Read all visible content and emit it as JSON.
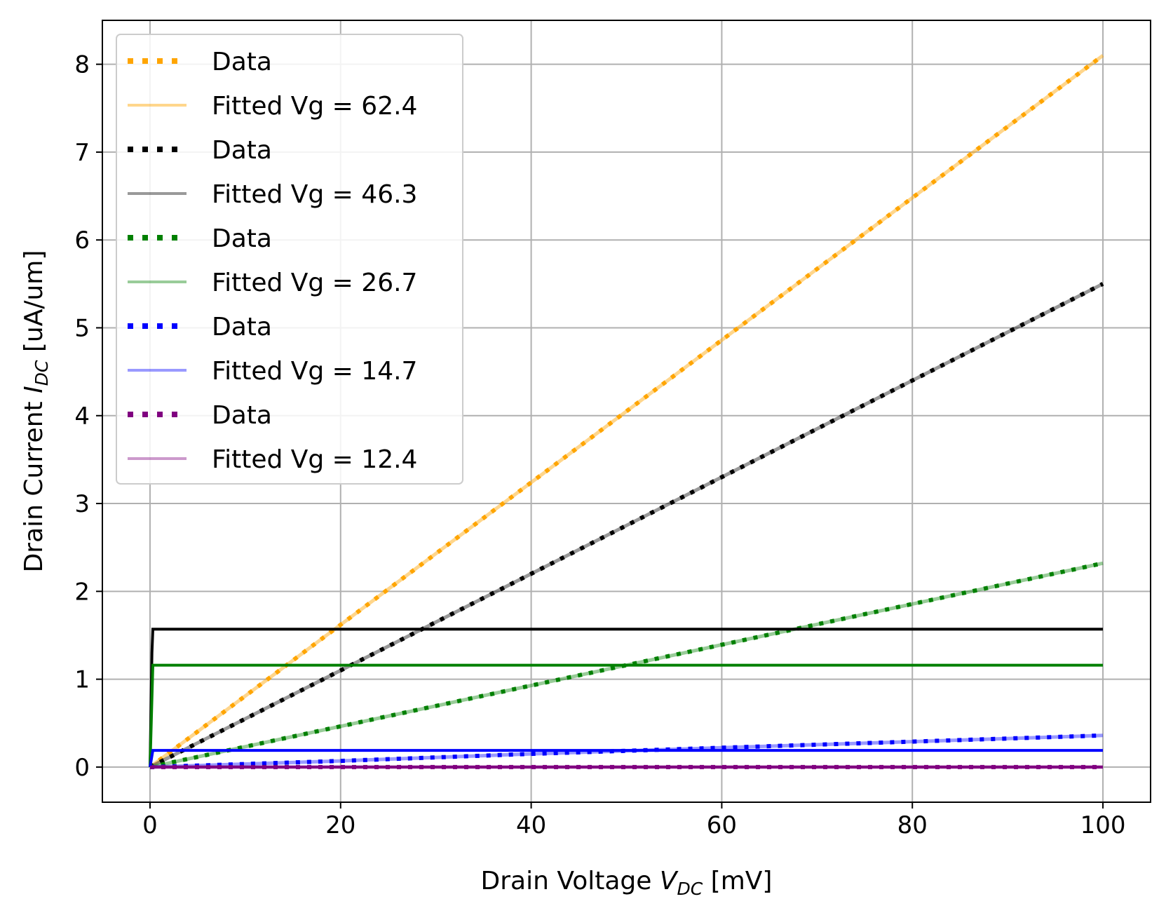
{
  "chart_data": {
    "type": "line",
    "xlabel": {
      "main": "Drain Voltage ",
      "var": "V",
      "sub": "DC",
      "unit": " [mV]"
    },
    "ylabel": {
      "main": "Drain Current ",
      "var": "I",
      "sub": "DC",
      "unit": " [uA/um]"
    },
    "xlim": [
      -5,
      105
    ],
    "ylim": [
      -0.4,
      8.5
    ],
    "xticks": [
      0,
      20,
      40,
      60,
      80,
      100
    ],
    "yticks": [
      0,
      1,
      2,
      3,
      4,
      5,
      6,
      7,
      8
    ],
    "grid": true,
    "legend_position": "top-left",
    "x_range": [
      0,
      100
    ],
    "series": [
      {
        "legend": "Data",
        "color": "#ffa500",
        "style": "dotted",
        "alpha": 1.0,
        "curve": [
          [
            0,
            0.0
          ],
          [
            100,
            8.1
          ]
        ]
      },
      {
        "legend": "Fitted Vg = 62.4",
        "color": "#ffa500",
        "style": "solid",
        "alpha": 0.45,
        "curve": [
          [
            0,
            0.0
          ],
          [
            100,
            8.1
          ]
        ]
      },
      {
        "legend": "Data",
        "color": "#000000",
        "style": "dotted",
        "alpha": 1.0,
        "curve": [
          [
            0,
            0.0
          ],
          [
            100,
            5.5
          ]
        ]
      },
      {
        "legend": "Fitted Vg = 46.3",
        "color": "#000000",
        "style": "solid",
        "alpha": 0.4,
        "curve": [
          [
            0,
            0.0
          ],
          [
            100,
            5.5
          ]
        ]
      },
      {
        "legend": "Data",
        "color": "#008000",
        "style": "dotted",
        "alpha": 1.0,
        "curve": [
          [
            0,
            0.0
          ],
          [
            100,
            2.32
          ]
        ]
      },
      {
        "legend": "Fitted Vg = 26.7",
        "color": "#008000",
        "style": "solid",
        "alpha": 0.4,
        "curve": [
          [
            0,
            0.0
          ],
          [
            100,
            2.32
          ]
        ]
      },
      {
        "legend": "Data",
        "color": "#0000ff",
        "style": "dotted",
        "alpha": 1.0,
        "curve": [
          [
            0,
            0.0
          ],
          [
            20,
            0.07
          ],
          [
            40,
            0.15
          ],
          [
            60,
            0.22
          ],
          [
            80,
            0.29
          ],
          [
            100,
            0.36
          ]
        ]
      },
      {
        "legend": "Fitted Vg = 14.7",
        "color": "#0000ff",
        "style": "solid",
        "alpha": 0.4,
        "curve": [
          [
            0,
            0.0
          ],
          [
            20,
            0.07
          ],
          [
            40,
            0.15
          ],
          [
            60,
            0.22
          ],
          [
            80,
            0.29
          ],
          [
            100,
            0.36
          ]
        ]
      },
      {
        "legend": "Data",
        "color": "#800080",
        "style": "dotted",
        "alpha": 1.0,
        "curve": [
          [
            0,
            0.0
          ],
          [
            100,
            0.0
          ]
        ]
      },
      {
        "legend": "Fitted Vg = 12.4",
        "color": "#800080",
        "style": "solid",
        "alpha": 0.4,
        "curve": [
          [
            0,
            0.0
          ],
          [
            100,
            0.0
          ]
        ]
      }
    ],
    "unlabeled_lines": [
      {
        "color": "#000000",
        "curve": [
          [
            0,
            0.0
          ],
          [
            0.2,
            1.3
          ],
          [
            0.3,
            1.57
          ],
          [
            100,
            1.57
          ]
        ]
      },
      {
        "color": "#008000",
        "curve": [
          [
            0,
            0.0
          ],
          [
            0.3,
            1.16
          ],
          [
            100,
            1.16
          ]
        ]
      },
      {
        "color": "#0000ff",
        "curve": [
          [
            0,
            0.0
          ],
          [
            0.3,
            0.19
          ],
          [
            100,
            0.19
          ]
        ]
      },
      {
        "color": "#800080",
        "curve": [
          [
            0,
            0.0
          ],
          [
            100,
            0.0
          ]
        ]
      }
    ]
  }
}
